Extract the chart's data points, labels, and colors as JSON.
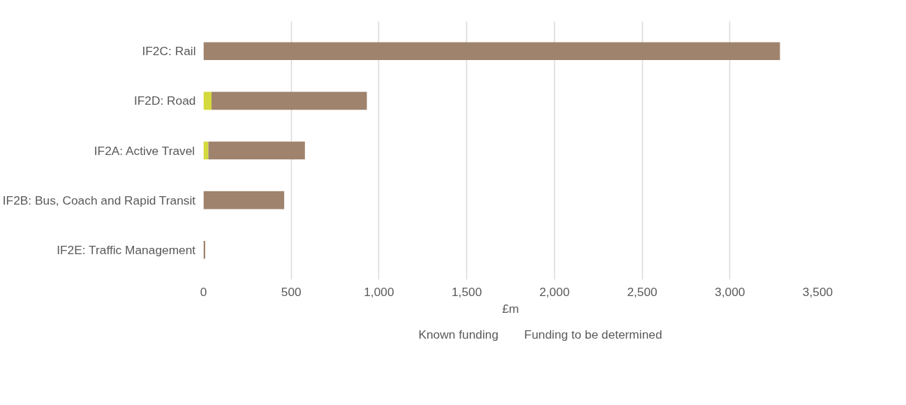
{
  "chart_data": {
    "type": "bar",
    "orientation": "horizontal",
    "stacked": true,
    "xlabel": "£m",
    "categories": [
      "IF2C: Rail",
      "IF2D: Road",
      "IF2A: Active Travel",
      "IF2B: Bus, Coach and Rapid Transit",
      "IF2E: Traffic Management"
    ],
    "series": [
      {
        "name": "Known funding",
        "color": "#d4d93c",
        "values": [
          0,
          46,
          28,
          0,
          0
        ]
      },
      {
        "name": "Funding to be determined",
        "color": "#9f836d",
        "values": [
          3285,
          885,
          550,
          460,
          10
        ]
      }
    ],
    "xlim": [
      0,
      3500
    ],
    "xticks": [
      0,
      {
        "value": 500,
        "label": "500"
      },
      {
        "value": 1000,
        "label": "1,000"
      },
      {
        "value": 1500,
        "label": "1,500"
      },
      {
        "value": 2000,
        "label": "2,000"
      },
      {
        "value": 2500,
        "label": "2,500"
      },
      {
        "value": 3000,
        "label": "3,000"
      },
      {
        "value": 3500,
        "label": "3,500"
      }
    ],
    "grid": "x",
    "legend": "bottom"
  }
}
